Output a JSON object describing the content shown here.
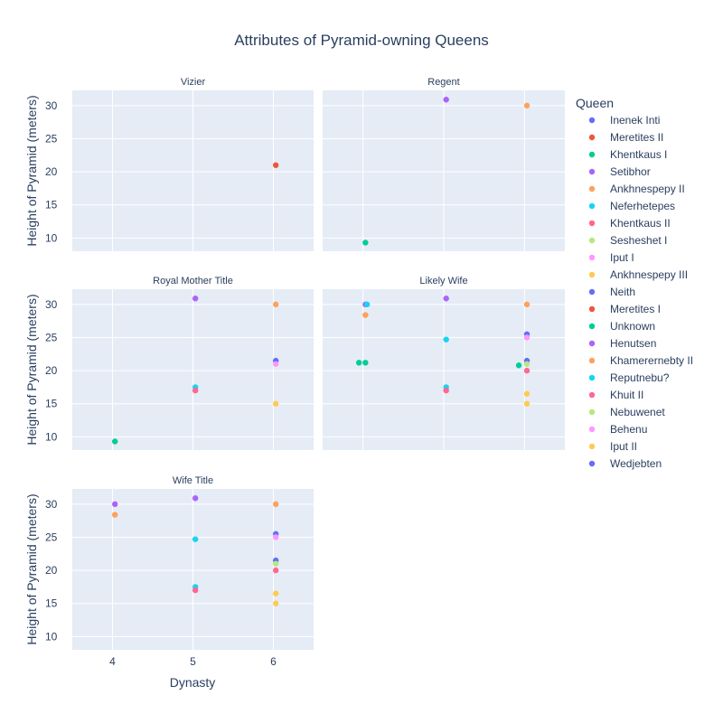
{
  "chart_data": {
    "type": "scatter",
    "title": "Attributes of Pyramid-owning Queens",
    "xlabel": "Dynasty",
    "ylabel": "Height of Pyramid (meters)",
    "xlim": [
      3.5,
      6.5
    ],
    "ylim": [
      8,
      32.3
    ],
    "xticks": [
      4,
      5,
      6
    ],
    "yticks": [
      10,
      15,
      20,
      25,
      30
    ],
    "grid": true,
    "legend_title": "Queen",
    "legend_position": "right",
    "series": [
      {
        "name": "Inenek Inti",
        "color": "#636efa"
      },
      {
        "name": "Meretites II",
        "color": "#EF553B"
      },
      {
        "name": "Khentkaus I",
        "color": "#00cc96"
      },
      {
        "name": "Setibhor",
        "color": "#ab63fa"
      },
      {
        "name": "Ankhnespepy II",
        "color": "#FFA15A"
      },
      {
        "name": "Neferhetepes",
        "color": "#19d3f3"
      },
      {
        "name": "Khentkaus II",
        "color": "#FF6692"
      },
      {
        "name": "Sesheshet I",
        "color": "#B6E880"
      },
      {
        "name": "Iput I",
        "color": "#FF97FF"
      },
      {
        "name": "Ankhnespepy III",
        "color": "#FECB52"
      },
      {
        "name": "Neith",
        "color": "#636efa"
      },
      {
        "name": "Meretites I",
        "color": "#EF553B"
      },
      {
        "name": "Unknown",
        "color": "#00cc96"
      },
      {
        "name": "Henutsen",
        "color": "#ab63fa"
      },
      {
        "name": "Khamerernebty II",
        "color": "#FFA15A"
      },
      {
        "name": "Reputnebu?",
        "color": "#19d3f3"
      },
      {
        "name": "Khuit II",
        "color": "#FF6692"
      },
      {
        "name": "Nebuwenet",
        "color": "#B6E880"
      },
      {
        "name": "Behenu",
        "color": "#FF97FF"
      },
      {
        "name": "Iput II",
        "color": "#FECB52"
      },
      {
        "name": "Wedjebten",
        "color": "#636efa"
      }
    ],
    "panels": [
      {
        "title": "Vizier",
        "points": [
          {
            "x": 6.03,
            "y": 21,
            "color": "#EF553B"
          }
        ]
      },
      {
        "title": "Regent",
        "points": [
          {
            "x": 4.03,
            "y": 9.3,
            "color": "#00cc96"
          },
          {
            "x": 5.03,
            "y": 30.9,
            "color": "#ab63fa"
          },
          {
            "x": 6.03,
            "y": 30,
            "color": "#FFA15A"
          }
        ]
      },
      {
        "title": "Royal Mother Title",
        "points": [
          {
            "x": 4.03,
            "y": 9.3,
            "color": "#00cc96"
          },
          {
            "x": 5.03,
            "y": 30.9,
            "color": "#ab63fa"
          },
          {
            "x": 5.03,
            "y": 17.5,
            "color": "#19d3f3"
          },
          {
            "x": 5.03,
            "y": 17,
            "color": "#FF6692"
          },
          {
            "x": 6.03,
            "y": 30,
            "color": "#FFA15A"
          },
          {
            "x": 6.03,
            "y": 21.5,
            "color": "#636efa"
          },
          {
            "x": 6.03,
            "y": 21,
            "color": "#FF97FF"
          },
          {
            "x": 6.03,
            "y": 15,
            "color": "#FECB52"
          }
        ]
      },
      {
        "title": "Likely Wife",
        "points": [
          {
            "x": 4.03,
            "y": 30,
            "color": "#ab63fa"
          },
          {
            "x": 4.05,
            "y": 30,
            "color": "#19d3f3"
          },
          {
            "x": 4.03,
            "y": 28.4,
            "color": "#FFA15A"
          },
          {
            "x": 3.95,
            "y": 21.2,
            "color": "#00cc96"
          },
          {
            "x": 4.03,
            "y": 21.2,
            "color": "#00cc96"
          },
          {
            "x": 5.03,
            "y": 30.9,
            "color": "#ab63fa"
          },
          {
            "x": 5.03,
            "y": 24.7,
            "color": "#19d3f3"
          },
          {
            "x": 5.03,
            "y": 17.5,
            "color": "#19d3f3"
          },
          {
            "x": 5.03,
            "y": 17,
            "color": "#FF6692"
          },
          {
            "x": 6.03,
            "y": 30,
            "color": "#FFA15A"
          },
          {
            "x": 6.03,
            "y": 25.5,
            "color": "#636efa"
          },
          {
            "x": 6.03,
            "y": 25,
            "color": "#FF97FF"
          },
          {
            "x": 6.03,
            "y": 21.5,
            "color": "#636efa"
          },
          {
            "x": 6.03,
            "y": 21,
            "color": "#B6E880"
          },
          {
            "x": 5.93,
            "y": 20.8,
            "color": "#00cc96"
          },
          {
            "x": 6.03,
            "y": 20,
            "color": "#FF6692"
          },
          {
            "x": 6.03,
            "y": 16.5,
            "color": "#FECB52"
          },
          {
            "x": 6.03,
            "y": 15,
            "color": "#FECB52"
          }
        ]
      },
      {
        "title": "Wife Title",
        "points": [
          {
            "x": 4.03,
            "y": 30,
            "color": "#ab63fa"
          },
          {
            "x": 4.03,
            "y": 28.4,
            "color": "#FFA15A"
          },
          {
            "x": 5.03,
            "y": 30.9,
            "color": "#ab63fa"
          },
          {
            "x": 5.03,
            "y": 24.7,
            "color": "#19d3f3"
          },
          {
            "x": 5.03,
            "y": 17.5,
            "color": "#19d3f3"
          },
          {
            "x": 5.03,
            "y": 17,
            "color": "#FF6692"
          },
          {
            "x": 6.03,
            "y": 30,
            "color": "#FFA15A"
          },
          {
            "x": 6.03,
            "y": 25.5,
            "color": "#636efa"
          },
          {
            "x": 6.03,
            "y": 25,
            "color": "#FF97FF"
          },
          {
            "x": 6.03,
            "y": 21.5,
            "color": "#636efa"
          },
          {
            "x": 6.03,
            "y": 21,
            "color": "#B6E880"
          },
          {
            "x": 6.03,
            "y": 20,
            "color": "#FF6692"
          },
          {
            "x": 6.03,
            "y": 16.5,
            "color": "#FECB52"
          },
          {
            "x": 6.03,
            "y": 15,
            "color": "#FECB52"
          }
        ]
      }
    ]
  }
}
